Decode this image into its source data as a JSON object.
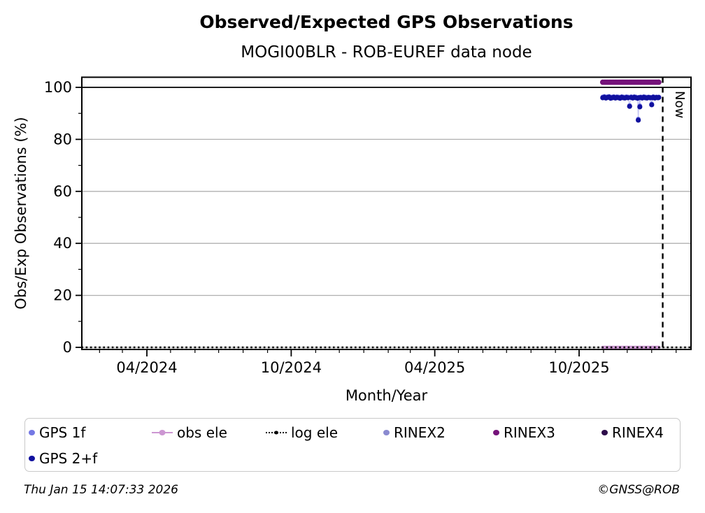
{
  "footer": {
    "timestamp": "Thu Jan 15 14:07:33 2026",
    "copyright": "©GNSS@ROB"
  },
  "legend": {
    "items": [
      {
        "label": "GPS 1f",
        "color": "#7478e4",
        "marker": "dot",
        "row": 0,
        "col": 0
      },
      {
        "label": "obs ele",
        "color": "#cc96d2",
        "marker": "line-dot",
        "row": 0,
        "col": 1
      },
      {
        "label": "log ele",
        "color": "#000000",
        "marker": "dotted-line-dot",
        "row": 0,
        "col": 2
      },
      {
        "label": "RINEX2",
        "color": "#8a8ad0",
        "marker": "dot",
        "row": 0,
        "col": 3
      },
      {
        "label": "RINEX3",
        "color": "#75137a",
        "marker": "dot",
        "row": 0,
        "col": 4
      },
      {
        "label": "RINEX4",
        "color": "#2d0c4a",
        "marker": "dot",
        "row": 0,
        "col": 5
      },
      {
        "label": "GPS 2+f",
        "color": "#10109e",
        "marker": "dot",
        "row": 1,
        "col": 0
      }
    ]
  },
  "chart_data": {
    "type": "scatter",
    "title": "Observed/Expected GPS Observations",
    "subtitle": "MOGI00BLR - ROB-EUREF data node",
    "xlabel": "Month/Year",
    "ylabel": "Obs/Exp Observations (%)",
    "xlim": [
      "2024-01-09",
      "2026-02-19"
    ],
    "ylim": [
      -1,
      104
    ],
    "y_major_ticks": [
      0,
      20,
      40,
      60,
      80,
      100
    ],
    "y_minor_ticks": [
      10,
      30,
      50,
      70,
      90
    ],
    "grid_y": [
      0,
      20,
      40,
      60,
      80
    ],
    "grid_color": "#b0b0b0",
    "hline": {
      "value": 100,
      "color": "#000000"
    },
    "x_major_ticks": [
      {
        "date": "2024-04-01",
        "label": "04/2024"
      },
      {
        "date": "2024-10-01",
        "label": "10/2024"
      },
      {
        "date": "2025-04-01",
        "label": "04/2025"
      },
      {
        "date": "2025-10-01",
        "label": "10/2025"
      }
    ],
    "x_minor": "monthly",
    "now_line": {
      "date": "2026-01-15",
      "label": "Now",
      "color": "#000000",
      "style": "dashed"
    },
    "series": [
      {
        "name": "obs ele",
        "color": "#cc96d2",
        "draw": "line+dots",
        "marker_r": 2.4,
        "line_w": 2,
        "run": {
          "start": "2025-10-31",
          "end": "2026-01-10",
          "step_days": 2,
          "value": 0
        }
      },
      {
        "name": "log ele",
        "color": "#000000",
        "draw": "dotted-line",
        "line_w": 2.4,
        "run": {
          "start": "2024-01-09",
          "end": "2026-02-19",
          "step_days": 771,
          "value": 0
        }
      },
      {
        "name": "GPS 1f",
        "color": "#7478e4",
        "draw": "faintline+dots",
        "marker_r": 3.4,
        "line_w": 1.2,
        "points": [
          [
            "2025-10-31",
            96.3
          ],
          [
            "2025-11-02",
            96.5
          ],
          [
            "2025-11-04",
            96.2
          ],
          [
            "2025-11-06",
            96.4
          ],
          [
            "2025-11-08",
            96.5
          ],
          [
            "2025-11-10",
            96.1
          ],
          [
            "2025-11-12",
            96.3
          ],
          [
            "2025-11-14",
            96.4
          ],
          [
            "2025-11-16",
            96.2
          ],
          [
            "2025-11-18",
            96.4
          ],
          [
            "2025-11-20",
            96.3
          ],
          [
            "2025-11-22",
            96.1
          ],
          [
            "2025-11-24",
            96.4
          ],
          [
            "2025-11-26",
            96.3
          ],
          [
            "2025-11-28",
            96.2
          ],
          [
            "2025-11-30",
            96.4
          ],
          [
            "2025-12-02",
            96.3
          ],
          [
            "2025-12-04",
            93.0
          ],
          [
            "2025-12-06",
            96.4
          ],
          [
            "2025-12-08",
            96.2
          ],
          [
            "2025-12-10",
            96.4
          ],
          [
            "2025-12-12",
            96.3
          ],
          [
            "2025-12-14",
            96.1
          ],
          [
            "2025-12-15",
            87.8
          ],
          [
            "2025-12-16",
            96.2
          ],
          [
            "2025-12-17",
            92.9
          ],
          [
            "2025-12-18",
            96.3
          ],
          [
            "2025-12-20",
            96.2
          ],
          [
            "2025-12-22",
            96.4
          ],
          [
            "2025-12-24",
            96.3
          ],
          [
            "2025-12-26",
            96.2
          ],
          [
            "2025-12-28",
            96.3
          ],
          [
            "2025-12-30",
            96.2
          ],
          [
            "2026-01-01",
            93.6
          ],
          [
            "2026-01-02",
            96.2
          ],
          [
            "2026-01-03",
            96.4
          ],
          [
            "2026-01-05",
            96.2
          ],
          [
            "2026-01-07",
            96.3
          ],
          [
            "2026-01-09",
            96.2
          ],
          [
            "2026-01-10",
            96.3
          ]
        ]
      },
      {
        "name": "GPS 2+f",
        "color": "#10109e",
        "draw": "dots",
        "marker_r": 3.6,
        "points": [
          [
            "2025-10-31",
            96.0
          ],
          [
            "2025-11-02",
            96.2
          ],
          [
            "2025-11-04",
            95.9
          ],
          [
            "2025-11-06",
            96.1
          ],
          [
            "2025-11-08",
            96.3
          ],
          [
            "2025-11-10",
            95.8
          ],
          [
            "2025-11-12",
            96.0
          ],
          [
            "2025-11-14",
            96.2
          ],
          [
            "2025-11-16",
            95.9
          ],
          [
            "2025-11-18",
            96.1
          ],
          [
            "2025-11-20",
            96.0
          ],
          [
            "2025-11-22",
            95.8
          ],
          [
            "2025-11-24",
            96.2
          ],
          [
            "2025-11-26",
            96.0
          ],
          [
            "2025-11-28",
            95.9
          ],
          [
            "2025-11-30",
            96.1
          ],
          [
            "2025-12-02",
            96.0
          ],
          [
            "2025-12-04",
            92.7
          ],
          [
            "2025-12-06",
            96.1
          ],
          [
            "2025-12-08",
            95.9
          ],
          [
            "2025-12-10",
            96.2
          ],
          [
            "2025-12-12",
            96.0
          ],
          [
            "2025-12-14",
            95.8
          ],
          [
            "2025-12-15",
            87.4
          ],
          [
            "2025-12-16",
            96.0
          ],
          [
            "2025-12-17",
            92.5
          ],
          [
            "2025-12-18",
            96.1
          ],
          [
            "2025-12-20",
            95.9
          ],
          [
            "2025-12-22",
            96.2
          ],
          [
            "2025-12-24",
            96.0
          ],
          [
            "2025-12-26",
            95.9
          ],
          [
            "2025-12-28",
            96.1
          ],
          [
            "2025-12-30",
            96.0
          ],
          [
            "2026-01-01",
            93.3
          ],
          [
            "2026-01-02",
            96.0
          ],
          [
            "2026-01-03",
            96.2
          ],
          [
            "2026-01-05",
            95.9
          ],
          [
            "2026-01-07",
            96.1
          ],
          [
            "2026-01-09",
            96.0
          ],
          [
            "2026-01-10",
            96.1
          ]
        ]
      },
      {
        "name": "RINEX3",
        "color": "#75137a",
        "draw": "dots",
        "marker_r": 3.9,
        "run": {
          "start": "2025-10-31",
          "end": "2026-01-10",
          "step_days": 2,
          "value": 102
        }
      },
      {
        "name": "RINEX2",
        "color": "#8a8ad0",
        "draw": "dots",
        "marker_r": 3.5,
        "points": []
      },
      {
        "name": "RINEX4",
        "color": "#2d0c4a",
        "draw": "dots",
        "marker_r": 3.5,
        "points": []
      }
    ]
  }
}
